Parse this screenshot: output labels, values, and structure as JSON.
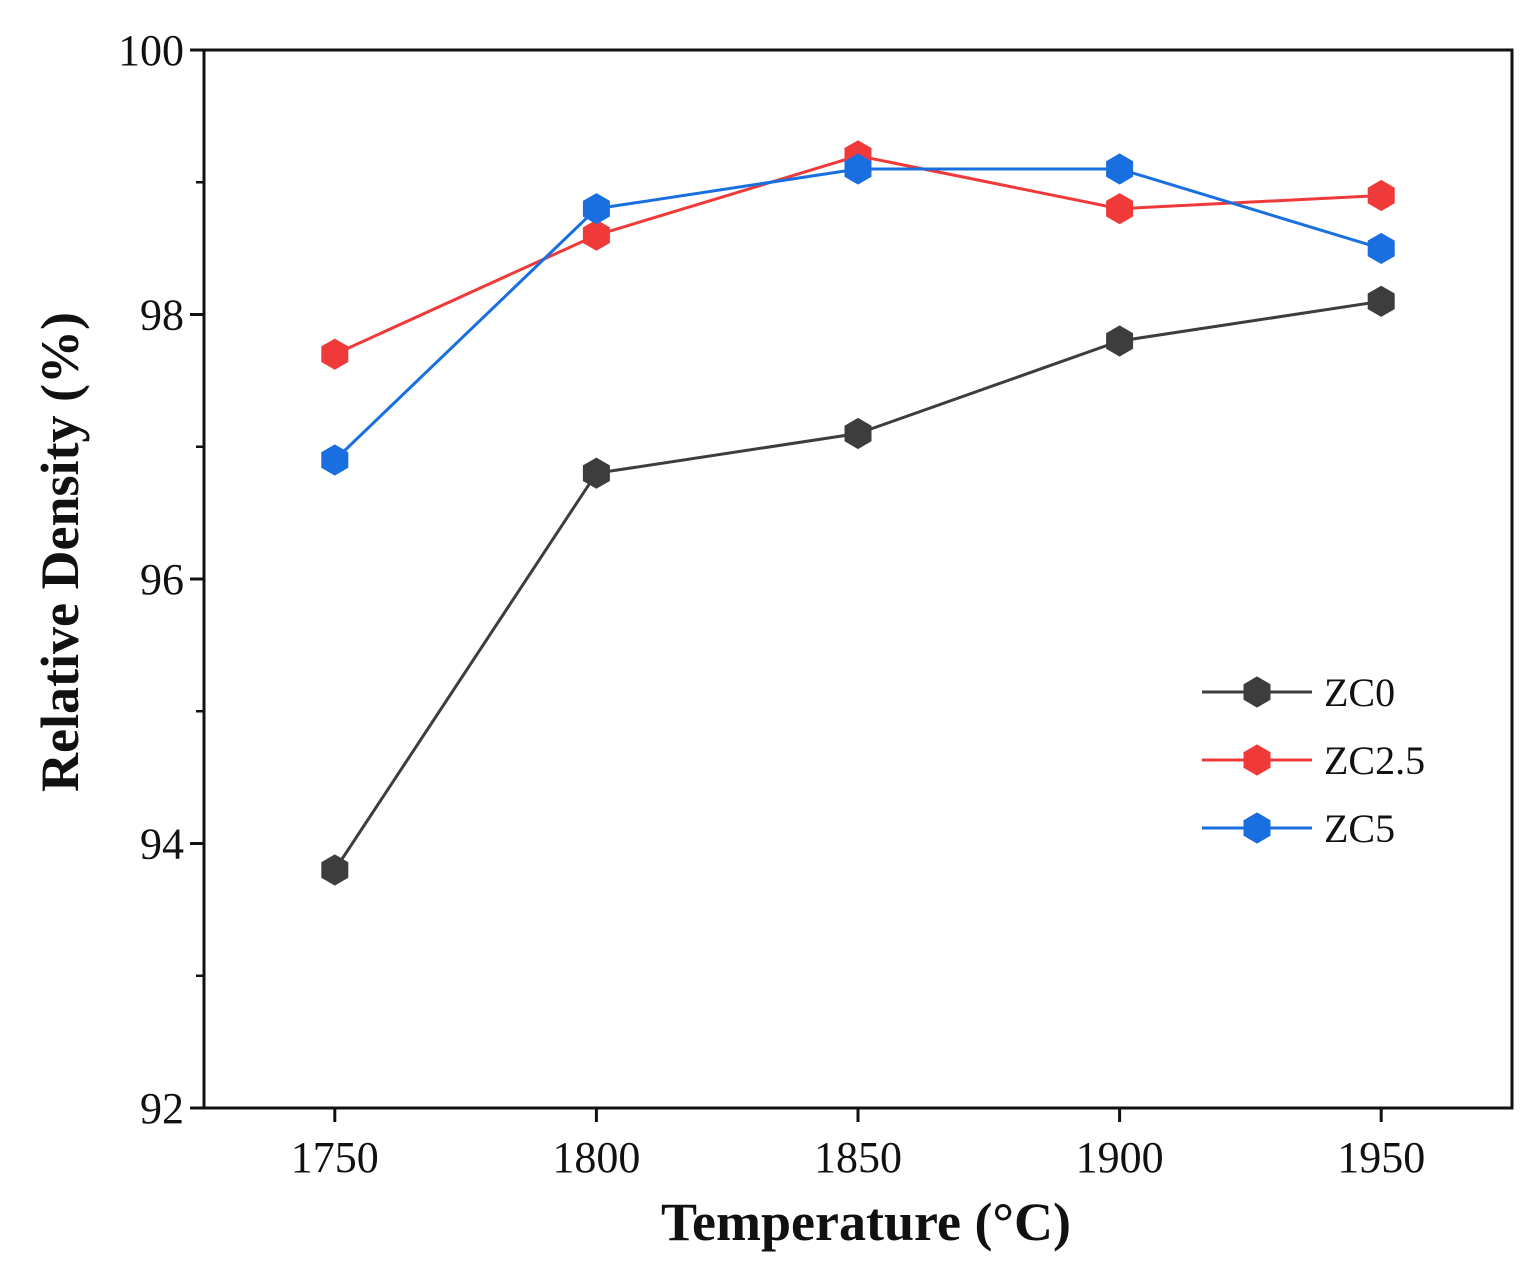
{
  "chart_data": {
    "type": "line",
    "title": "",
    "xlabel": "Temperature (°C)",
    "ylabel": "Relative Density (%)",
    "x": [
      1750,
      1800,
      1850,
      1900,
      1950
    ],
    "xlim": [
      1725,
      1975
    ],
    "ylim": [
      92,
      100
    ],
    "x_ticks": [
      "1750",
      "1800",
      "1850",
      "1900",
      "1950"
    ],
    "y_ticks": [
      "92",
      "94",
      "96",
      "98",
      "100"
    ],
    "y_minor_ticks": [
      93,
      95,
      97,
      99
    ],
    "grid": false,
    "legend_position": "center-right",
    "series": [
      {
        "name": "ZC0",
        "color": "#3d3d3d",
        "values": [
          93.8,
          96.8,
          97.1,
          97.8,
          98.1
        ]
      },
      {
        "name": "ZC2.5",
        "color": "#f03a3a",
        "values": [
          97.7,
          98.6,
          99.2,
          98.8,
          98.9
        ]
      },
      {
        "name": "ZC5",
        "color": "#1a6fe0",
        "values": [
          96.9,
          98.8,
          99.1,
          99.1,
          98.5
        ]
      }
    ]
  }
}
